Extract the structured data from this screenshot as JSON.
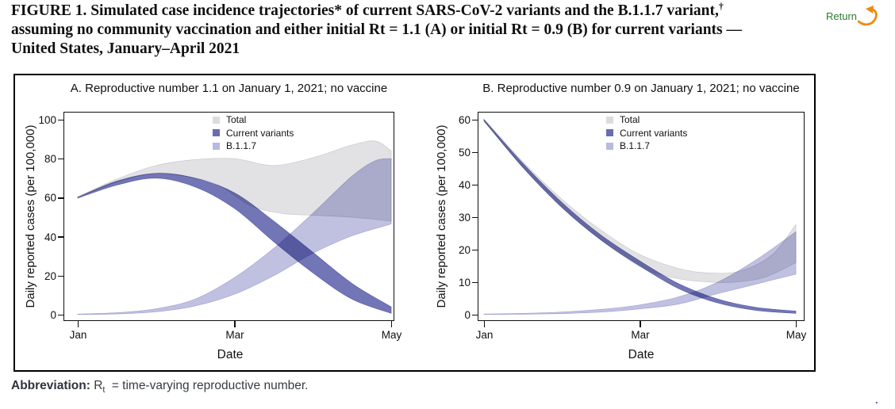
{
  "header": {
    "title_line1": "FIGURE 1. Simulated case incidence trajectories* of current SARS-CoV-2 variants and the B.1.1.7 variant,",
    "title_dagger": "†",
    "title_line2": "assuming no community vaccination and either initial Rt = 1.1 (A) or initial Rt = 0.9 (B) for current variants —",
    "title_line3": "United States, January–April 2021",
    "return_label": "Return",
    "return_color": "#2c7a2c",
    "arrow_color": "#ee8a10"
  },
  "footer": {
    "abbr_label": "Abbreviation:",
    "abbr_r": "R",
    "abbr_sub": "t",
    "abbr_rest": "= time-varying reproductive number.",
    "stray_period": "."
  },
  "chart_data": [
    {
      "type": "area",
      "panel_label": "A. Reproductive number 1.1 on January 1, 2021; no vaccine",
      "ylabel": "Daily reported cases (per 100,000)",
      "xlabel": "Date",
      "ylim": [
        0,
        100
      ],
      "xlim": [
        0,
        4
      ],
      "yticks": [
        0,
        20,
        40,
        60,
        80,
        100
      ],
      "xticks": [
        {
          "v": 0,
          "label": "Jan"
        },
        {
          "v": 2,
          "label": "Mar"
        },
        {
          "v": 4,
          "label": "May"
        }
      ],
      "grid": false,
      "legend_position": "top-center",
      "legend": [
        {
          "name": "Total",
          "color": "#dcdce0"
        },
        {
          "name": "Current variants",
          "color": "#686db3"
        },
        {
          "name": "B.1.1.7",
          "color": "#b9badf"
        }
      ],
      "x_unit": "months since Jan 1, 2021",
      "series": [
        {
          "name": "Total",
          "color": "#e2e2e5",
          "edge": "#c9c9ce",
          "blend": "normal",
          "upper": {
            "x": [
              0,
              0.5,
              1,
              1.5,
              2,
              2.5,
              3,
              3.5,
              3.8,
              4
            ],
            "y": [
              60.5,
              69.5,
              76.5,
              79.5,
              80,
              76.5,
              80.5,
              87,
              89,
              84
            ]
          },
          "lower": {
            "x": [
              0,
              0.5,
              1,
              1.5,
              1.8,
              2.2,
              2.6,
              3,
              3.5,
              4
            ],
            "y": [
              60,
              68,
              72.5,
              70,
              66.5,
              56,
              52,
              51,
              50,
              48
            ]
          }
        },
        {
          "name": "B.1.1.7",
          "color": "#c0c1e1",
          "edge": "#a3a5d2",
          "blend": "multiply",
          "upper": {
            "x": [
              0,
              0.5,
              1,
              1.5,
              2,
              2.5,
              3,
              3.5,
              3.8,
              4
            ],
            "y": [
              0.3,
              1,
              3,
              8,
              19,
              34,
              52,
              71,
              79,
              80
            ]
          },
          "lower": {
            "x": [
              0,
              0.5,
              1,
              1.5,
              2,
              2.5,
              3,
              3.5,
              4
            ],
            "y": [
              0.05,
              0.4,
              1.5,
              4.5,
              10.5,
              20,
              31.5,
              40.5,
              46.5
            ]
          }
        },
        {
          "name": "Current variants",
          "color": "#7276b6",
          "edge": "#5c60a5",
          "blend": "multiply",
          "upper": {
            "x": [
              0,
              0.5,
              1,
              1.5,
              2,
              2.5,
              3,
              3.5,
              4
            ],
            "y": [
              60.2,
              68.5,
              72.5,
              70,
              62.5,
              48,
              32,
              16,
              4
            ]
          },
          "lower": {
            "x": [
              0,
              0.5,
              1,
              1.5,
              2,
              2.5,
              3,
              3.5,
              4
            ],
            "y": [
              59.8,
              66.5,
              70,
              65.5,
              54.5,
              37.5,
              21.5,
              8,
              0.7
            ]
          }
        }
      ]
    },
    {
      "type": "area",
      "panel_label": "B. Reproductive number 0.9 on January 1, 2021; no vaccine",
      "ylabel": "Daily reported cases (per 100,000)",
      "xlabel": "Date",
      "ylim": [
        0,
        60
      ],
      "xlim": [
        0,
        4
      ],
      "yticks": [
        0,
        10,
        20,
        30,
        40,
        50,
        60
      ],
      "xticks": [
        {
          "v": 0,
          "label": "Jan"
        },
        {
          "v": 2,
          "label": "Mar"
        },
        {
          "v": 4,
          "label": "May"
        }
      ],
      "grid": false,
      "legend_position": "top-center",
      "legend": [
        {
          "name": "Total",
          "color": "#dcdce0"
        },
        {
          "name": "Current variants",
          "color": "#686db3"
        },
        {
          "name": "B.1.1.7",
          "color": "#b9badf"
        }
      ],
      "x_unit": "months since Jan 1, 2021",
      "series": [
        {
          "name": "Total",
          "color": "#e2e2e5",
          "edge": "#c9c9ce",
          "blend": "normal",
          "upper": {
            "x": [
              0,
              0.5,
              1,
              1.5,
              2,
              2.5,
              2.9,
              3.3,
              3.7,
              4
            ],
            "y": [
              60.2,
              47,
              35.5,
              26,
              18.5,
              14.2,
              12.8,
              13.5,
              18.5,
              27.7
            ]
          },
          "lower": {
            "x": [
              0,
              0.5,
              1,
              1.5,
              2,
              2.4,
              2.8,
              3.2,
              3.6,
              4
            ],
            "y": [
              59.6,
              45.3,
              33,
              23,
              14.8,
              11.5,
              10.2,
              10,
              11.5,
              16
            ]
          }
        },
        {
          "name": "B.1.1.7",
          "color": "#c0c1e1",
          "edge": "#a3a5d2",
          "blend": "multiply",
          "upper": {
            "x": [
              0,
              0.5,
              1,
              1.5,
              2,
              2.5,
              3,
              3.5,
              4
            ],
            "y": [
              0.2,
              0.4,
              0.8,
              1.6,
              3,
              5.5,
              10,
              17,
              25.5
            ]
          },
          "lower": {
            "x": [
              0,
              0.5,
              1,
              1.5,
              2,
              2.5,
              3,
              3.5,
              4
            ],
            "y": [
              0.05,
              0.15,
              0.35,
              0.8,
              1.8,
              3.3,
              6.5,
              9.5,
              12.5
            ]
          }
        },
        {
          "name": "Current variants",
          "color": "#7276b6",
          "edge": "#5c60a5",
          "blend": "multiply",
          "upper": {
            "x": [
              0,
              0.5,
              1,
              1.5,
              2,
              2.5,
              3,
              3.5,
              4
            ],
            "y": [
              60,
              46.5,
              34.5,
              24.5,
              16.5,
              9.5,
              4.8,
              2.2,
              1.1
            ]
          },
          "lower": {
            "x": [
              0,
              0.5,
              1,
              1.5,
              2,
              2.5,
              3,
              3.5,
              4
            ],
            "y": [
              59.6,
              45.3,
              33,
              23,
              15,
              8,
              3.6,
              1.3,
              0.4
            ]
          }
        }
      ]
    }
  ]
}
